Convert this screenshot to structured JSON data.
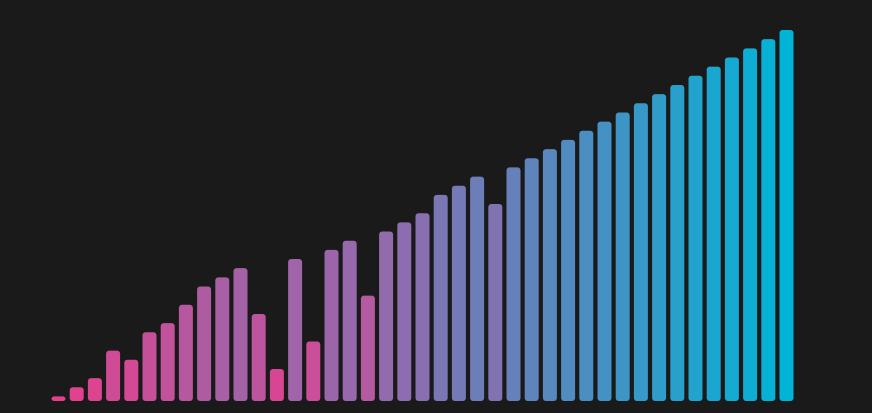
{
  "chart_data": {
    "type": "bar",
    "title": "",
    "xlabel": "",
    "ylabel": "",
    "grid": false,
    "legend": "none",
    "ylim": [
      0,
      40
    ],
    "values": [
      0.5,
      1.5,
      2.5,
      5.5,
      4.5,
      7.5,
      8.5,
      10.5,
      12.5,
      13.5,
      14.5,
      9.5,
      3.5,
      15.5,
      6.5,
      16.5,
      17.5,
      11.5,
      18.5,
      19.5,
      20.5,
      22.5,
      23.5,
      24.5,
      21.5,
      25.5,
      26.5,
      27.5,
      28.5,
      29.5,
      30.5,
      31.5,
      32.5,
      33.5,
      34.5,
      35.5,
      36.5,
      37.5,
      38.5,
      39.5,
      40.5
    ],
    "colors": {
      "background": "#1a1a1a",
      "gradient_start": "#e83e8c",
      "gradient_mid": "#8a6fb0",
      "gradient_end": "#00b4d8"
    }
  }
}
